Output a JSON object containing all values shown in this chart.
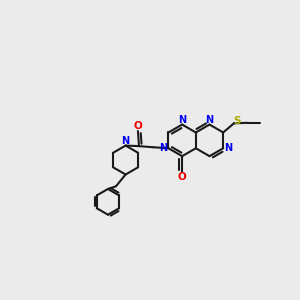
{
  "bg_color": "#ebebeb",
  "bond_color": "#1a1a1a",
  "N_color": "#0000ee",
  "O_color": "#ee0000",
  "S_color": "#aaaa00",
  "lw": 1.5,
  "fig_width": 3.0,
  "fig_height": 3.0,
  "dpi": 100,
  "xlim": [
    -2.8,
    2.8
  ],
  "ylim": [
    -1.8,
    1.8
  ]
}
